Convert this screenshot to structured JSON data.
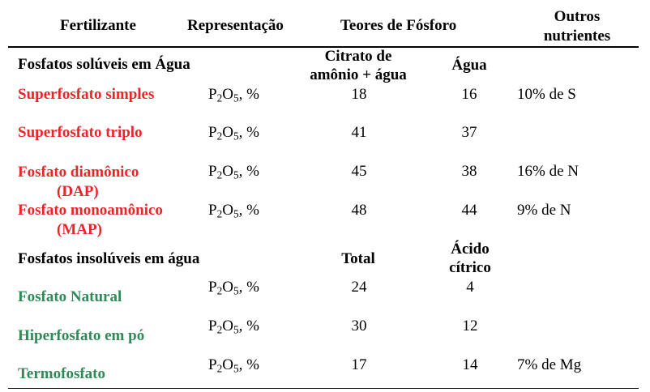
{
  "header": {
    "fertilizante": "Fertilizante",
    "representacao": "Representação",
    "teores": "Teores de Fósforo",
    "outros_l1": "Outros",
    "outros_l2": "nutrientes"
  },
  "group1": {
    "title": "Fosfatos solúveis em Água",
    "col_a_l1": "Citrato de",
    "col_a_l2": "amônio + água",
    "col_b": "Água",
    "rows": [
      {
        "name_l1": "Superfosfato simples",
        "name_l2": "",
        "rep_pre": "P",
        "rep_sub1": "2",
        "rep_mid": "O",
        "rep_sub2": "5",
        "rep_post": ", %",
        "a": "18",
        "b": "16",
        "other": "10% de S"
      },
      {
        "name_l1": "Superfosfato triplo",
        "name_l2": "",
        "rep_pre": "P",
        "rep_sub1": "2",
        "rep_mid": "O",
        "rep_sub2": "5",
        "rep_post": ", %",
        "a": "41",
        "b": "37",
        "other": ""
      },
      {
        "name_l1": "Fosfato diamônico",
        "name_l2": "(DAP)",
        "rep_pre": "P",
        "rep_sub1": "2",
        "rep_mid": "O",
        "rep_sub2": "5",
        "rep_post": ", %",
        "a": "45",
        "b": "38",
        "other": "16% de N"
      },
      {
        "name_l1": "Fosfato monoamônico",
        "name_l2": "(MAP)",
        "rep_pre": "P",
        "rep_sub1": "2",
        "rep_mid": "O",
        "rep_sub2": "5",
        "rep_post": ", %",
        "a": "48",
        "b": "44",
        "other": "9% de N"
      }
    ]
  },
  "group2": {
    "title": "Fosfatos insolúveis  em água",
    "col_a": "Total",
    "col_b_l1": "Ácido",
    "col_b_l2": "cítrico",
    "rows": [
      {
        "name": "Fosfato Natural",
        "rep_pre": "P",
        "rep_sub1": "2",
        "rep_mid": "O",
        "rep_sub2": "5",
        "rep_post": ", %",
        "a": "24",
        "b": "4",
        "other": ""
      },
      {
        "name": "Hiperfosfato em pó",
        "rep_pre": "P",
        "rep_sub1": "2",
        "rep_mid": "O",
        "rep_sub2": "5",
        "rep_post": ", %",
        "a": "30",
        "b": "12",
        "other": ""
      },
      {
        "name": "Termofosfato",
        "rep_pre": "P",
        "rep_sub1": "2",
        "rep_mid": "O",
        "rep_sub2": "5",
        "rep_post": ", %",
        "a": "17",
        "b": "14",
        "other": "7% de Mg"
      }
    ]
  },
  "colors": {
    "soluble_name": "#e8262a",
    "insoluble_name": "#2e8b57"
  }
}
